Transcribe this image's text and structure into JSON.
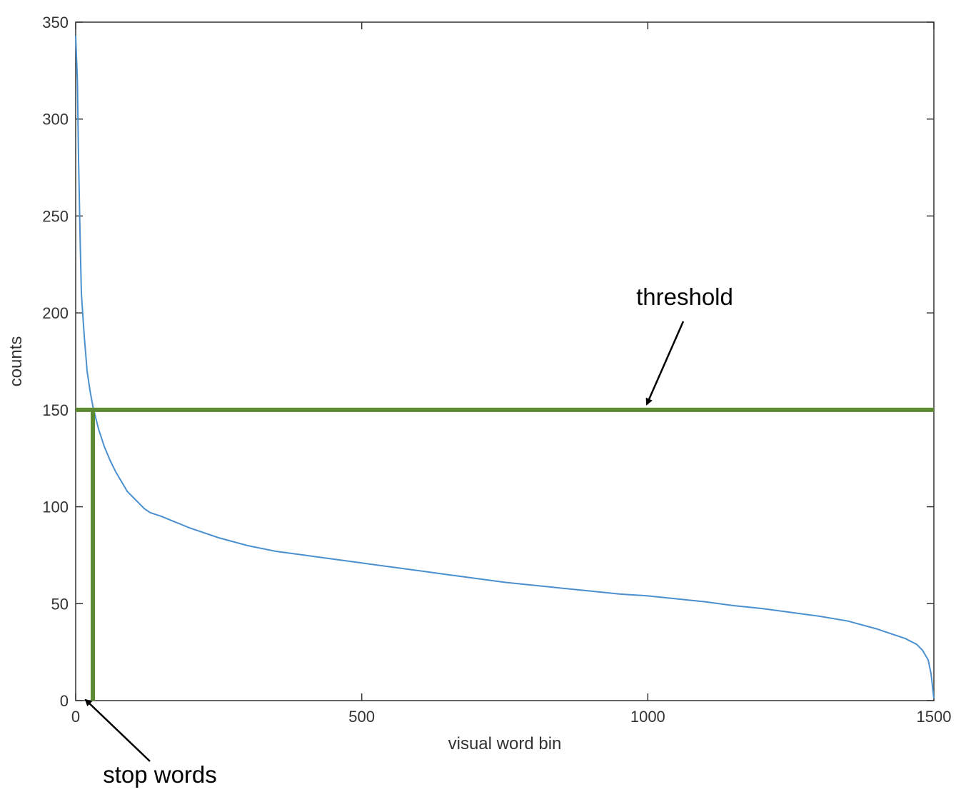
{
  "chart_data": {
    "type": "line",
    "xlabel": "visual word bin",
    "ylabel": "counts",
    "xlim": [
      0,
      1500
    ],
    "ylim": [
      0,
      350
    ],
    "xticks": [
      0,
      500,
      1000,
      1500
    ],
    "yticks": [
      0,
      50,
      100,
      150,
      200,
      250,
      300,
      350
    ],
    "grid": false,
    "series": [
      {
        "color": "#4a90d0",
        "x": [
          0,
          3,
          5,
          8,
          10,
          15,
          20,
          25,
          30,
          35,
          40,
          50,
          60,
          70,
          80,
          90,
          100,
          110,
          120,
          130,
          140,
          150,
          175,
          200,
          250,
          300,
          350,
          400,
          450,
          500,
          550,
          600,
          650,
          700,
          750,
          800,
          850,
          900,
          950,
          1000,
          1050,
          1100,
          1150,
          1200,
          1250,
          1300,
          1350,
          1400,
          1450,
          1470,
          1480,
          1490,
          1495,
          1500
        ],
        "values": [
          343,
          320,
          280,
          235,
          210,
          188,
          170,
          160,
          152,
          146,
          140,
          131,
          124,
          118,
          113,
          108,
          105,
          102,
          99,
          97,
          96,
          95,
          92,
          89,
          84,
          80,
          77,
          75,
          73,
          71,
          69,
          67,
          65,
          63,
          61,
          59.5,
          58,
          56.5,
          55,
          54,
          52.5,
          51,
          49,
          47.5,
          45.5,
          43.5,
          41,
          37,
          32,
          29,
          26,
          21,
          14,
          1
        ]
      }
    ],
    "reference_lines": [
      {
        "orientation": "horizontal",
        "y": 150,
        "color": "#5b8a31"
      },
      {
        "orientation": "vertical",
        "x": 30,
        "y_from": 0,
        "y_to": 150,
        "color": "#5b8a31"
      }
    ],
    "annotations": [
      {
        "text": "threshold",
        "points_to": {
          "x": 1000,
          "y": 150
        }
      },
      {
        "text": "stop words",
        "points_to": {
          "x": 20,
          "y": 0
        }
      }
    ]
  }
}
